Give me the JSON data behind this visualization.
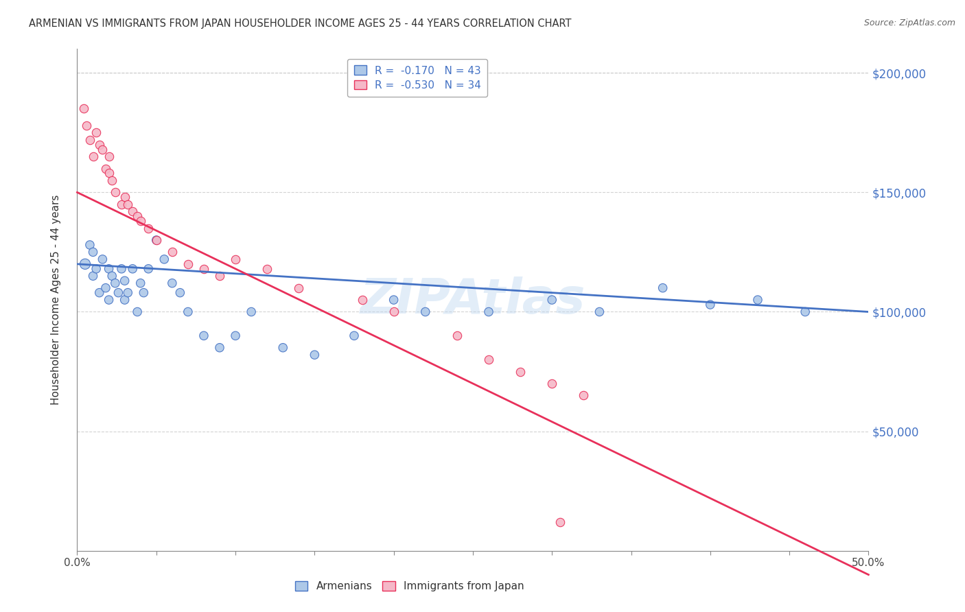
{
  "title": "ARMENIAN VS IMMIGRANTS FROM JAPAN HOUSEHOLDER INCOME AGES 25 - 44 YEARS CORRELATION CHART",
  "source": "Source: ZipAtlas.com",
  "ylabel": "Householder Income Ages 25 - 44 years",
  "xlim": [
    0.0,
    0.5
  ],
  "ylim": [
    0,
    210000
  ],
  "xtick_values": [
    0.0,
    0.05,
    0.1,
    0.15,
    0.2,
    0.25,
    0.3,
    0.35,
    0.4,
    0.45,
    0.5
  ],
  "xtick_labels": [
    "0.0%",
    "",
    "",
    "",
    "",
    "",
    "",
    "",
    "",
    "",
    "50.0%"
  ],
  "ytick_values": [
    50000,
    100000,
    150000,
    200000
  ],
  "ytick_labels": [
    "$50,000",
    "$100,000",
    "$150,000",
    "$200,000"
  ],
  "armenian_R": -0.17,
  "armenian_N": 43,
  "japan_R": -0.53,
  "japan_N": 34,
  "legend_label_1": "Armenians",
  "legend_label_2": "Immigrants from Japan",
  "watermark": "ZIPAtlas",
  "armenian_color": "#adc8e8",
  "japan_color": "#f5b8c8",
  "armenian_line_color": "#4472c4",
  "japan_line_color": "#e8305a",
  "armenian_x": [
    0.005,
    0.008,
    0.01,
    0.01,
    0.012,
    0.014,
    0.016,
    0.018,
    0.02,
    0.02,
    0.022,
    0.024,
    0.026,
    0.028,
    0.03,
    0.03,
    0.032,
    0.035,
    0.038,
    0.04,
    0.042,
    0.045,
    0.05,
    0.055,
    0.06,
    0.065,
    0.07,
    0.08,
    0.09,
    0.1,
    0.11,
    0.13,
    0.15,
    0.175,
    0.2,
    0.22,
    0.26,
    0.3,
    0.33,
    0.37,
    0.4,
    0.43,
    0.46
  ],
  "armenian_y": [
    120000,
    128000,
    115000,
    125000,
    118000,
    108000,
    122000,
    110000,
    118000,
    105000,
    115000,
    112000,
    108000,
    118000,
    113000,
    105000,
    108000,
    118000,
    100000,
    112000,
    108000,
    118000,
    130000,
    122000,
    112000,
    108000,
    100000,
    90000,
    85000,
    90000,
    100000,
    85000,
    82000,
    90000,
    105000,
    100000,
    100000,
    105000,
    100000,
    110000,
    103000,
    105000,
    100000
  ],
  "armenian_sizes": [
    120,
    80,
    80,
    80,
    80,
    80,
    80,
    80,
    80,
    80,
    80,
    80,
    80,
    80,
    80,
    80,
    80,
    80,
    80,
    80,
    80,
    80,
    80,
    80,
    80,
    80,
    80,
    80,
    80,
    80,
    80,
    80,
    80,
    80,
    80,
    80,
    80,
    80,
    80,
    80,
    80,
    80,
    80
  ],
  "japan_x": [
    0.004,
    0.006,
    0.008,
    0.01,
    0.012,
    0.014,
    0.016,
    0.018,
    0.02,
    0.02,
    0.022,
    0.024,
    0.028,
    0.03,
    0.032,
    0.035,
    0.038,
    0.04,
    0.045,
    0.05,
    0.06,
    0.07,
    0.08,
    0.09,
    0.1,
    0.12,
    0.14,
    0.18,
    0.2,
    0.24,
    0.26,
    0.28,
    0.3,
    0.32
  ],
  "japan_y": [
    185000,
    178000,
    172000,
    165000,
    175000,
    170000,
    168000,
    160000,
    165000,
    158000,
    155000,
    150000,
    145000,
    148000,
    145000,
    142000,
    140000,
    138000,
    135000,
    130000,
    125000,
    120000,
    118000,
    115000,
    122000,
    118000,
    110000,
    105000,
    100000,
    90000,
    80000,
    75000,
    70000,
    65000
  ],
  "japan_outlier_x": [
    0.305
  ],
  "japan_outlier_y": [
    12000
  ]
}
